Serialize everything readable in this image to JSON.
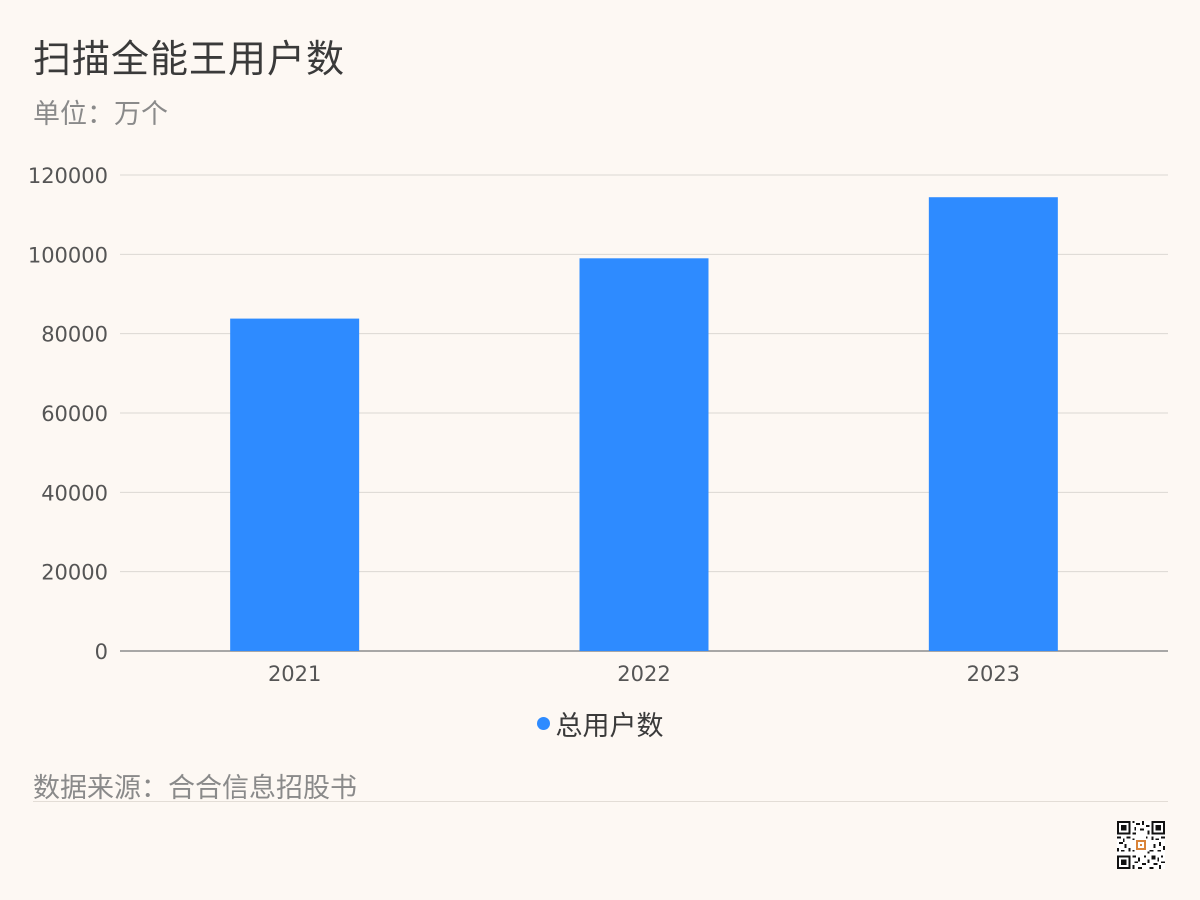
{
  "header": {
    "title": "扫描全能王用户数",
    "subtitle": "单位：万个"
  },
  "footer": {
    "source": "数据来源：合合信息招股书"
  },
  "colors": {
    "bar": "#2e8bff",
    "grid": "#dcd8d3",
    "axis": "#8c8c8c",
    "tick_text": "#555555"
  },
  "chart_data": {
    "type": "bar",
    "categories": [
      "2021",
      "2022",
      "2023"
    ],
    "series": [
      {
        "name": "总用户数",
        "values": [
          83800,
          99000,
          114400
        ]
      }
    ],
    "ylim": [
      0,
      120000
    ],
    "yticks": [
      0,
      20000,
      40000,
      60000,
      80000,
      100000,
      120000
    ],
    "grid": true,
    "legend_position": "bottom-center"
  }
}
